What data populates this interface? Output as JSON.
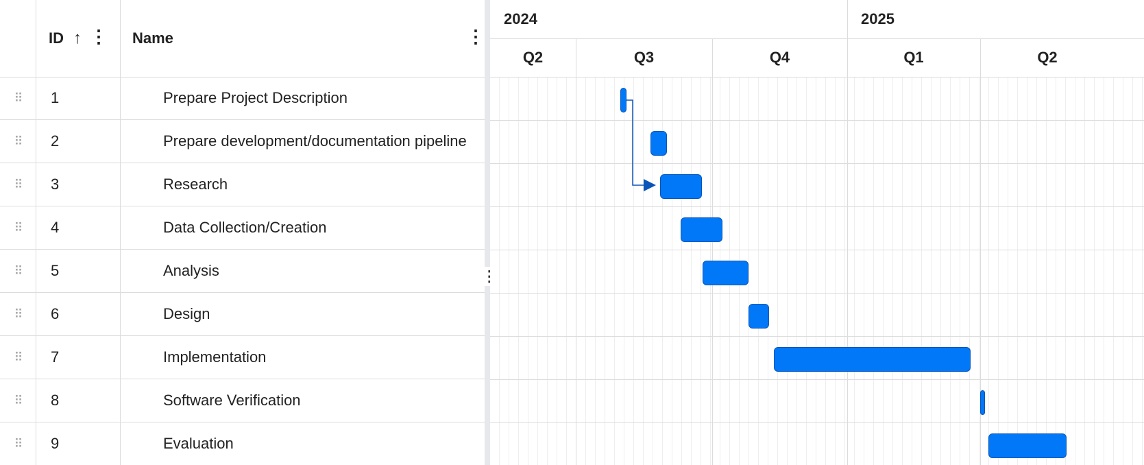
{
  "grid": {
    "columns": {
      "id": "ID",
      "name": "Name"
    },
    "rows": [
      {
        "id": "1",
        "name": "Prepare Project Description"
      },
      {
        "id": "2",
        "name": "Prepare development/documentation pipeline"
      },
      {
        "id": "3",
        "name": "Research"
      },
      {
        "id": "4",
        "name": "Data Collection/Creation"
      },
      {
        "id": "5",
        "name": "Analysis"
      },
      {
        "id": "6",
        "name": "Design"
      },
      {
        "id": "7",
        "name": "Implementation"
      },
      {
        "id": "8",
        "name": "Software Verification"
      },
      {
        "id": "9",
        "name": "Evaluation"
      }
    ],
    "icons": {
      "sort": "arrow-up-icon",
      "column_menu": "kebab-menu-icon",
      "drag": "drag-handle-icon"
    }
  },
  "timeline": {
    "years": [
      "2024",
      "2025"
    ],
    "quarters": [
      "Q2",
      "Q3",
      "Q4",
      "Q1",
      "Q2"
    ]
  },
  "colors": {
    "bar": "#0078f8",
    "bar_border": "#0a55b8",
    "dependency": "#0a55b8"
  }
}
